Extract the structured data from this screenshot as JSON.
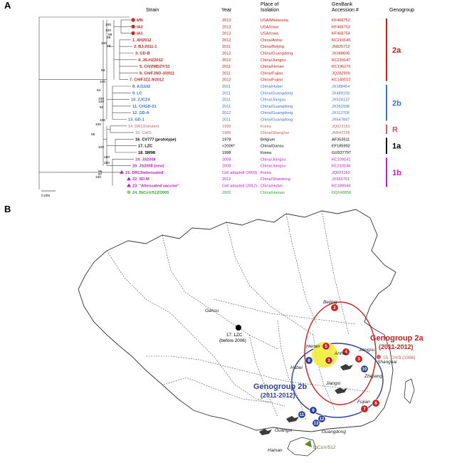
{
  "panel_a": {
    "label": "A",
    "headers": {
      "strain": "Strain",
      "year": "Year",
      "place_line1": "Place of",
      "place_line2": "Isolation",
      "genbank_line1": "GenBank",
      "genbank_line2": "Accession #",
      "genogroup": "Genogroup"
    },
    "scale_label": "0.005",
    "strains": [
      {
        "name": "MN",
        "year": "2013",
        "place": "USA/Minnesota",
        "acc": "KF468752",
        "color": "#c8201c",
        "bold": true,
        "marker": "circle"
      },
      {
        "name": "IA2",
        "year": "2013",
        "place": "USA/Iowa",
        "acc": "KF468753",
        "color": "#c8201c",
        "bold": true,
        "marker": "circle"
      },
      {
        "name": "IA1",
        "year": "2013",
        "place": "USA/Iowa",
        "acc": "KF468754",
        "color": "#c8201c",
        "bold": true,
        "marker": "circle"
      },
      {
        "name": "1. AH2012",
        "year": "2012",
        "place": "China/Anhui",
        "acc": "KC210145",
        "color": "#c8201c",
        "bold": true,
        "marker": ""
      },
      {
        "name": "2. BJ-2011-1",
        "year": "2011",
        "place": "China/Beijing",
        "acc": "JN825712",
        "color": "#c8201c",
        "bold": true,
        "marker": ""
      },
      {
        "name": "3. GD-B",
        "year": "2012",
        "place": "China/Guangdong",
        "acc": "JX088695",
        "color": "#c8201c",
        "bold": true,
        "marker": ""
      },
      {
        "name": "4. JS-HZ2012",
        "year": "2012",
        "place": "China/Jiangsu",
        "acc": "KC210147",
        "color": "#c8201c",
        "bold": true,
        "marker": ""
      },
      {
        "name": "5. CH/ZMDZY/11",
        "year": "2011",
        "place": "China/Henan",
        "acc": "KC196276",
        "color": "#c8201c",
        "bold": true,
        "marker": ""
      },
      {
        "name": "6. CH/FJND-3/2011",
        "year": "2011",
        "place": "China/Fujian",
        "acc": "JQ282909",
        "color": "#c8201c",
        "bold": true,
        "marker": ""
      },
      {
        "name": "7. CH/FJZZ-9/2012",
        "year": "2012",
        "place": "China/Fujian",
        "acc": "KC140102",
        "color": "#c8201c",
        "bold": true,
        "marker": ""
      },
      {
        "name": "8. AJ1102",
        "year": "2011",
        "place": "China/Hubei",
        "acc": "JX188454",
        "color": "#3f6fd0",
        "bold": true,
        "marker": ""
      },
      {
        "name": "9. LC",
        "year": "2011",
        "place": "China/Guangdong",
        "acc": "JX489155",
        "color": "#3f6fd0",
        "bold": true,
        "marker": ""
      },
      {
        "name": "10. ZJCZ4",
        "year": "2011",
        "place": "China/Jiangsu",
        "acc": "JX524137",
        "color": "#3f6fd0",
        "bold": true,
        "marker": ""
      },
      {
        "name": "11. CHGD-01",
        "year": "2011",
        "place": "China/Guangdong",
        "acc": "JX261936",
        "color": "#3f6fd0",
        "bold": true,
        "marker": ""
      },
      {
        "name": "12. GD-A",
        "year": "2012",
        "place": "China/Guangdong",
        "acc": "JX112709",
        "color": "#3f6fd0",
        "bold": true,
        "marker": ""
      },
      {
        "name": "13. GD-1",
        "year": "2011",
        "place": "China/Guangdong",
        "acc": "JX647847",
        "color": "#3f6fd0",
        "bold": true,
        "marker": ""
      },
      {
        "name": "14. DR13/virulent",
        "year": "1999",
        "place": "Korea",
        "acc": "JQ023161",
        "color": "#c86060",
        "bold": false,
        "marker": ""
      },
      {
        "name": "15. CH/S",
        "year": "1986",
        "place": "China/Shanghai",
        "acc": "JN547228",
        "color": "#c86060",
        "bold": false,
        "marker": ""
      },
      {
        "name": "16. CV777 (prototype)",
        "year": "1978",
        "place": "Belgium",
        "acc": "AF353511",
        "color": "#000000",
        "bold": true,
        "marker": ""
      },
      {
        "name": "17. LZC",
        "year": "<2006*",
        "place": "China/Gansu",
        "acc": "EF185992",
        "color": "#000000",
        "bold": true,
        "marker": ""
      },
      {
        "name": "18. SM98",
        "year": "1998",
        "place": "Korea",
        "acc": "GU937797",
        "color": "#000000",
        "bold": true,
        "marker": ""
      },
      {
        "name": "19. JS2008",
        "year": "2008",
        "place": "China/Jiangsu",
        "acc": "KC109141",
        "color": "#c020c8",
        "bold": true,
        "marker": ""
      },
      {
        "name": "20. JS2008 (new)",
        "year": "2008",
        "place": "China/Jiangsu",
        "acc": "KC210146",
        "color": "#c020c8",
        "bold": true,
        "marker": ""
      },
      {
        "name": "21. DR13/attenuated",
        "year": "Cell adapted (2003)",
        "place": "Korea",
        "acc": "JQ023162",
        "color": "#c020c8",
        "bold": true,
        "marker": "triangle"
      },
      {
        "name": "22. SD-M",
        "year": "2012",
        "place": "China/Shandong",
        "acc": "JX560761",
        "color": "#c020c8",
        "bold": true,
        "marker": "triangle"
      },
      {
        "name": "23. \"Attenuated vaccine\"",
        "year": "Cell adapted (2012)",
        "place": "China/Hubei",
        "acc": "KC189944",
        "color": "#c020c8",
        "bold": true,
        "marker": "triangle"
      },
      {
        "name": "24. BtCoV/512/2005",
        "year": "2005",
        "place": "China/Hainan",
        "acc": "DQ648858",
        "color": "#3aa33a",
        "bold": true,
        "marker": "circle-green"
      }
    ],
    "bootstraps": [
      "100",
      "100",
      "99",
      "99",
      "100",
      "79",
      "63",
      "100",
      "84",
      "100",
      "100",
      "92",
      "100",
      "100",
      "95",
      "100",
      "100",
      "100",
      "95",
      "87",
      "100"
    ],
    "genogroups": [
      {
        "label": "2a",
        "color": "#c8201c"
      },
      {
        "label": "2b",
        "color": "#3f6fd0"
      },
      {
        "label": "R",
        "color": "#c86060"
      },
      {
        "label": "1a",
        "color": "#000000"
      },
      {
        "label": "1b",
        "color": "#c020c8"
      }
    ]
  },
  "panel_b": {
    "label": "B",
    "map_labels": {
      "beijing": "Beijing",
      "gansu": "Gansu",
      "henan": "Henan",
      "anhui": "Anhui",
      "jiangsu": "Jiangsu",
      "shanghai": "Shanghai",
      "zhejiang": "Zhejiang",
      "hubei": "Hubei",
      "jiangxi": "Jiangxi",
      "fujian": "Fujian",
      "guangxi": "Guangxi",
      "guangdong": "Guangdong",
      "hainan": "Hainan"
    },
    "lzc_label_1": "17. LZC",
    "lzc_label_2": "(before 2006)",
    "chs_label": "15. CH/S (1986)",
    "btcov_label": "BtCoV/512",
    "genogroup_2a_line1": "Genogroup 2a",
    "genogroup_2a_line2": "(2011-2012)",
    "genogroup_2b_line1": "Genogroup 2b",
    "genogroup_2b_line2": "(2011-2012)",
    "red_numbers": [
      "2",
      "5",
      "4",
      "1",
      "3",
      "6",
      "7"
    ],
    "blue_numbers": [
      "8",
      "10",
      "9",
      "11",
      "12",
      "13"
    ],
    "colors": {
      "red": "#c8201c",
      "blue": "#2a3fa0",
      "chs": "#c86060",
      "bat": "#5a8a2a",
      "yellow": "#f2ec35"
    }
  }
}
